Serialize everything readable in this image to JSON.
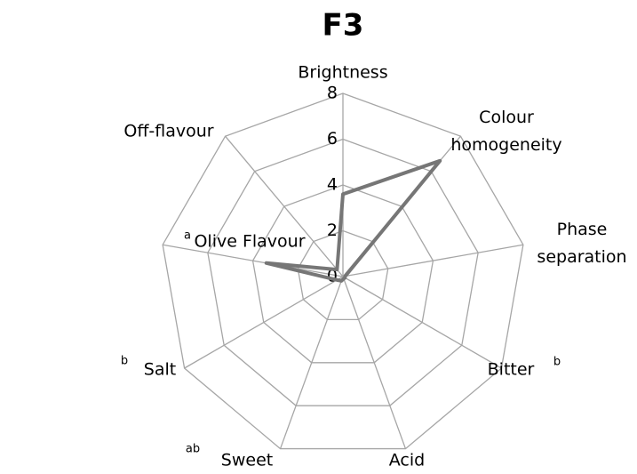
{
  "chart_data": {
    "type": "radar",
    "title": "F3",
    "categories": [
      "Brightness",
      "Colour homogeneity",
      "Phase separation",
      "Bitter",
      "Acid",
      "Sweet",
      "Salt",
      "Olive Flavour",
      "Off-flavour"
    ],
    "superscripts": [
      null,
      null,
      null,
      "b",
      null,
      "ab",
      "b",
      "a",
      null
    ],
    "series": [
      {
        "name": "F3",
        "color": "#767676",
        "values": [
          3.6,
          6.6,
          0.1,
          0.1,
          0.1,
          0.2,
          0.3,
          3.4,
          0.4
        ]
      }
    ],
    "ylim": [
      0,
      8
    ],
    "yticks": [
      0,
      2,
      4,
      6,
      8
    ],
    "grid": true
  }
}
